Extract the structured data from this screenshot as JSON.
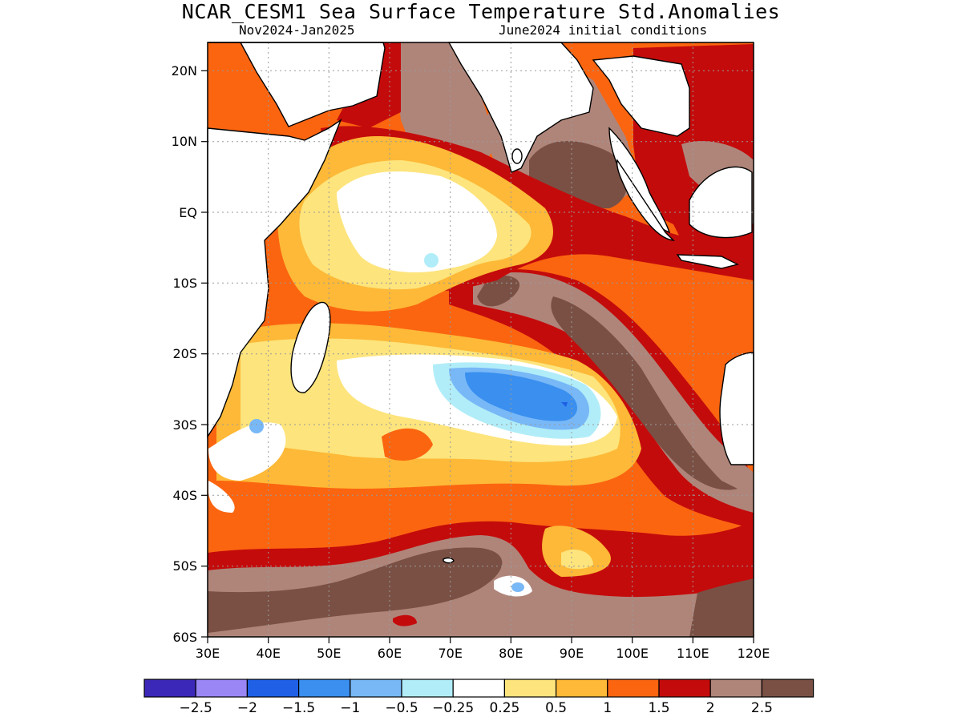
{
  "title": "NCAR_CESM1 Sea Surface Temperature Std.Anomalies",
  "subtitle_period": "Nov2024-Jan2025",
  "subtitle_init": "June2024 initial conditions",
  "map": {
    "lon_range": [
      30,
      120
    ],
    "lat_range": [
      -60,
      24
    ],
    "lon_ticks": [
      "30E",
      "40E",
      "50E",
      "60E",
      "70E",
      "80E",
      "90E",
      "100E",
      "110E",
      "120E"
    ],
    "lat_ticks": [
      "20N",
      "10N",
      "EQ",
      "10S",
      "20S",
      "30S",
      "40S",
      "50S",
      "60S"
    ],
    "grid": "dotted"
  },
  "colorbar": {
    "colors": [
      "#3c28b8",
      "#9a87f5",
      "#1f60e6",
      "#3a8fef",
      "#78b8f7",
      "#b1edf8",
      "#ffffff",
      "#fde47c",
      "#fdb937",
      "#fb6510",
      "#c40b0b",
      "#af857a",
      "#7a5044"
    ],
    "labels": [
      "-2.5",
      "-2",
      "-1.5",
      "-1",
      "-0.5",
      "-0.25",
      "0.25",
      "0.5",
      "1",
      "1.5",
      "2",
      "2.5"
    ]
  }
}
